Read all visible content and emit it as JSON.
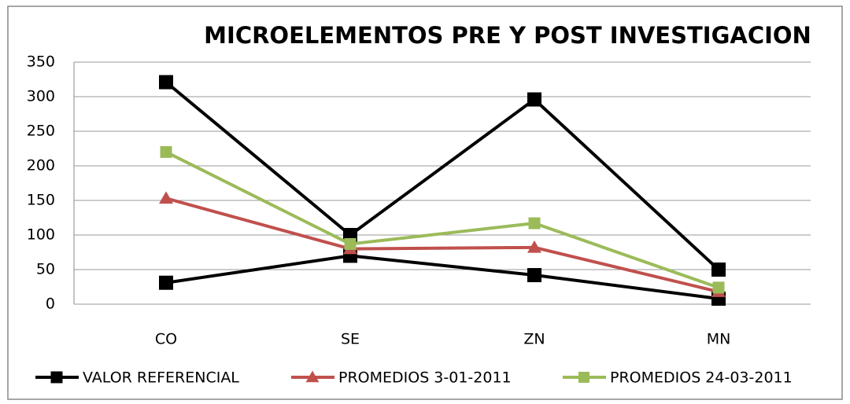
{
  "chart_data": {
    "type": "line",
    "title": "MICROELEMENTOS PRE Y POST INVESTIGACION",
    "categories": [
      "CO",
      "SE",
      "ZN",
      "MN"
    ],
    "series": [
      {
        "name": "VALOR REFERENCIAL",
        "color": "#000000",
        "marker": "square",
        "values": [
          321,
          100,
          296,
          50
        ],
        "values_low": [
          31,
          70,
          42,
          8
        ]
      },
      {
        "name": "PROMEDIOS 3-01-2011",
        "color": "#c0504d",
        "marker": "triangle",
        "values": [
          153,
          80,
          82,
          18
        ]
      },
      {
        "name": "PROMEDIOS 24-03-2011",
        "color": "#9bbb59",
        "marker": "square",
        "values": [
          220,
          87,
          117,
          24
        ]
      }
    ],
    "ylim": [
      0,
      350
    ],
    "yticks": [
      0,
      50,
      100,
      150,
      200,
      250,
      300,
      350
    ],
    "grid": true,
    "legend": "bottom"
  }
}
